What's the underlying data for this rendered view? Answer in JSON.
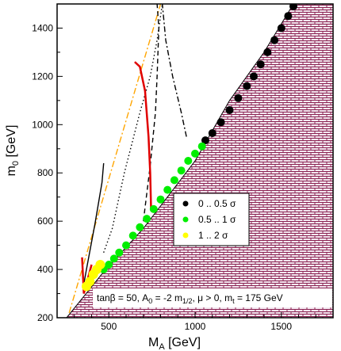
{
  "chart_data": {
    "type": "scatter",
    "xlabel_main": "M",
    "xlabel_sub": "A",
    "xlabel_unit": " [GeV]",
    "ylabel_main": "m",
    "ylabel_sub": "0",
    "ylabel_unit": " [GeV]",
    "xlim": [
      200,
      1800
    ],
    "ylim": [
      200,
      1500
    ],
    "x_ticks": [
      500,
      1000,
      1500
    ],
    "y_ticks": [
      200,
      400,
      600,
      800,
      1000,
      1200,
      1400
    ],
    "grid": false,
    "excluded_region_boundary": [
      [
        255,
        200
      ],
      [
        470,
        390
      ],
      [
        700,
        570
      ],
      [
        1000,
        850
      ],
      [
        1200,
        1100
      ],
      [
        1400,
        1300
      ],
      [
        1570,
        1500
      ]
    ],
    "lines": [
      {
        "style": "orange-dashdot",
        "color": "#FFA500",
        "points": [
          [
            270,
            220
          ],
          [
            800,
            1500
          ]
        ]
      },
      {
        "style": "black-solid",
        "color": "#000000",
        "points": [
          [
            350,
            320
          ],
          [
            370,
            400
          ],
          [
            420,
            590
          ],
          [
            460,
            760
          ],
          [
            470,
            840
          ]
        ]
      },
      {
        "style": "black-dotted",
        "color": "#000000",
        "points": [
          [
            470,
            470
          ],
          [
            520,
            570
          ],
          [
            590,
            800
          ],
          [
            680,
            1050
          ],
          [
            740,
            1200
          ],
          [
            780,
            1350
          ],
          [
            810,
            1500
          ]
        ]
      },
      {
        "style": "black-dashed",
        "color": "#000000",
        "points": [
          [
            700,
            600
          ],
          [
            740,
            830
          ],
          [
            770,
            1050
          ],
          [
            780,
            1200
          ],
          [
            790,
            1400
          ],
          [
            780,
            1500
          ]
        ]
      },
      {
        "style": "black-dashdot",
        "color": "#000000",
        "points": [
          [
            950,
            950
          ],
          [
            920,
            1050
          ],
          [
            870,
            1200
          ],
          [
            830,
            1350
          ],
          [
            810,
            1500
          ]
        ]
      },
      {
        "style": "red-solid",
        "color": "#E00000",
        "points": [
          [
            345,
            450
          ],
          [
            355,
            300
          ],
          [
            400,
            420
          ]
        ]
      },
      {
        "style": "red-solid",
        "color": "#E00000",
        "points": [
          [
            650,
            1260
          ],
          [
            680,
            1240
          ],
          [
            710,
            1140
          ],
          [
            730,
            950
          ],
          [
            740,
            800
          ],
          [
            745,
            650
          ]
        ]
      }
    ],
    "series": [
      {
        "name": "0 .. 0.5 σ",
        "color": "#000000",
        "points": [
          [
            1060,
            935
          ],
          [
            1100,
            965
          ],
          [
            1150,
            1010
          ],
          [
            1200,
            1060
          ],
          [
            1250,
            1110
          ],
          [
            1300,
            1160
          ],
          [
            1340,
            1200
          ],
          [
            1380,
            1250
          ],
          [
            1420,
            1300
          ],
          [
            1460,
            1350
          ],
          [
            1500,
            1400
          ],
          [
            1540,
            1450
          ],
          [
            1570,
            1490
          ]
        ]
      },
      {
        "name": "0.5 .. 1 σ",
        "color": "#00EE00",
        "points": [
          [
            470,
            400
          ],
          [
            500,
            420
          ],
          [
            530,
            445
          ],
          [
            560,
            470
          ],
          [
            600,
            500
          ],
          [
            640,
            540
          ],
          [
            680,
            575
          ],
          [
            720,
            610
          ],
          [
            760,
            650
          ],
          [
            800,
            690
          ],
          [
            840,
            730
          ],
          [
            880,
            770
          ],
          [
            920,
            810
          ],
          [
            960,
            850
          ],
          [
            1000,
            880
          ],
          [
            1040,
            910
          ]
        ]
      },
      {
        "name": "1 .. 2 σ",
        "color": "#FFFF00",
        "points": [
          [
            370,
            330
          ],
          [
            390,
            350
          ],
          [
            410,
            380
          ],
          [
            430,
            400
          ],
          [
            450,
            420
          ]
        ]
      }
    ],
    "annotation_parts": [
      "tanβ = 50, A",
      "0",
      " = -2 m",
      "1/2",
      ", μ > 0, m",
      "t",
      " = 175 GeV"
    ]
  }
}
